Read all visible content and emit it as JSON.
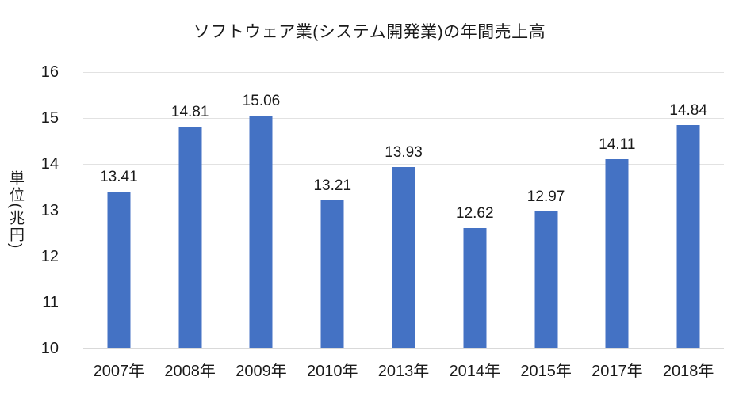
{
  "chart_data": {
    "type": "bar",
    "title": "ソフトウェア業(システム開発業)の年間売上高",
    "xlabel": "",
    "ylabel": "単位(兆円)",
    "categories": [
      "2007年",
      "2008年",
      "2009年",
      "2010年",
      "2013年",
      "2014年",
      "2015年",
      "2017年",
      "2018年"
    ],
    "values": [
      13.41,
      14.81,
      15.06,
      13.21,
      13.93,
      12.62,
      12.97,
      14.11,
      14.84
    ],
    "data_labels": [
      "13.41",
      "14.81",
      "15.06",
      "13.21",
      "13.93",
      "12.62",
      "12.97",
      "14.11",
      "14.84"
    ],
    "ylim": [
      10,
      16
    ],
    "ytick_step": 1,
    "yticks": [
      "10",
      "11",
      "12",
      "13",
      "14",
      "15",
      "16"
    ],
    "grid": true,
    "legend": null,
    "bar_color": "#4472C4",
    "gridline_color": "#e2e2e2",
    "baseline_color": "#d9d9d9",
    "text_color": "#1a1a1a",
    "background_color": "#ffffff"
  }
}
